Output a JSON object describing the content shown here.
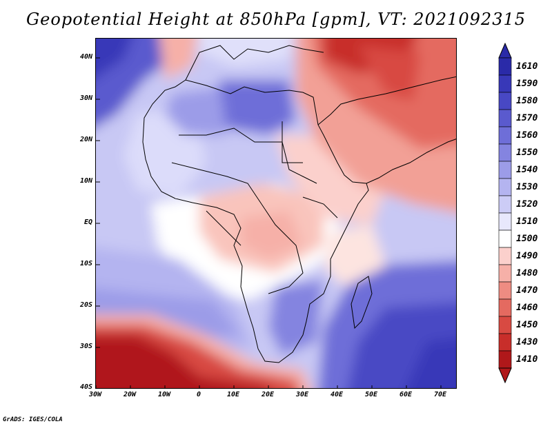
{
  "title": "Geopotential Height at 850hPa [gpm], VT: 2021092315",
  "credit": "GrADS: IGES/COLA",
  "axes": {
    "lat_labels": [
      "40N",
      "30N",
      "20N",
      "10N",
      "EQ",
      "10S",
      "20S",
      "30S",
      "40S"
    ],
    "lon_labels": [
      "30W",
      "20W",
      "10W",
      "0",
      "10E",
      "20E",
      "30E",
      "40E",
      "50E",
      "60E",
      "70E"
    ]
  },
  "colorbar": {
    "labels": [
      "1610",
      "1590",
      "1580",
      "1570",
      "1560",
      "1550",
      "1540",
      "1530",
      "1520",
      "1510",
      "1500",
      "1490",
      "1480",
      "1470",
      "1460",
      "1450",
      "1430",
      "1410"
    ],
    "colors": [
      "#2a2aa8",
      "#3838b8",
      "#4848c4",
      "#5a5ace",
      "#6e6ed8",
      "#8484e0",
      "#9c9ce8",
      "#b4b4f0",
      "#ccccf6",
      "#e8e8fc",
      "#ffffff",
      "#fbd0cc",
      "#f6b0a8",
      "#ee8c82",
      "#e46a60",
      "#d84a42",
      "#c82e2a",
      "#b0181a"
    ]
  },
  "map": {
    "region": "Africa, Middle East and Southwest Asia",
    "lat_range": [
      "40S",
      "45N"
    ],
    "lon_range": [
      "30W",
      "75E"
    ]
  }
}
